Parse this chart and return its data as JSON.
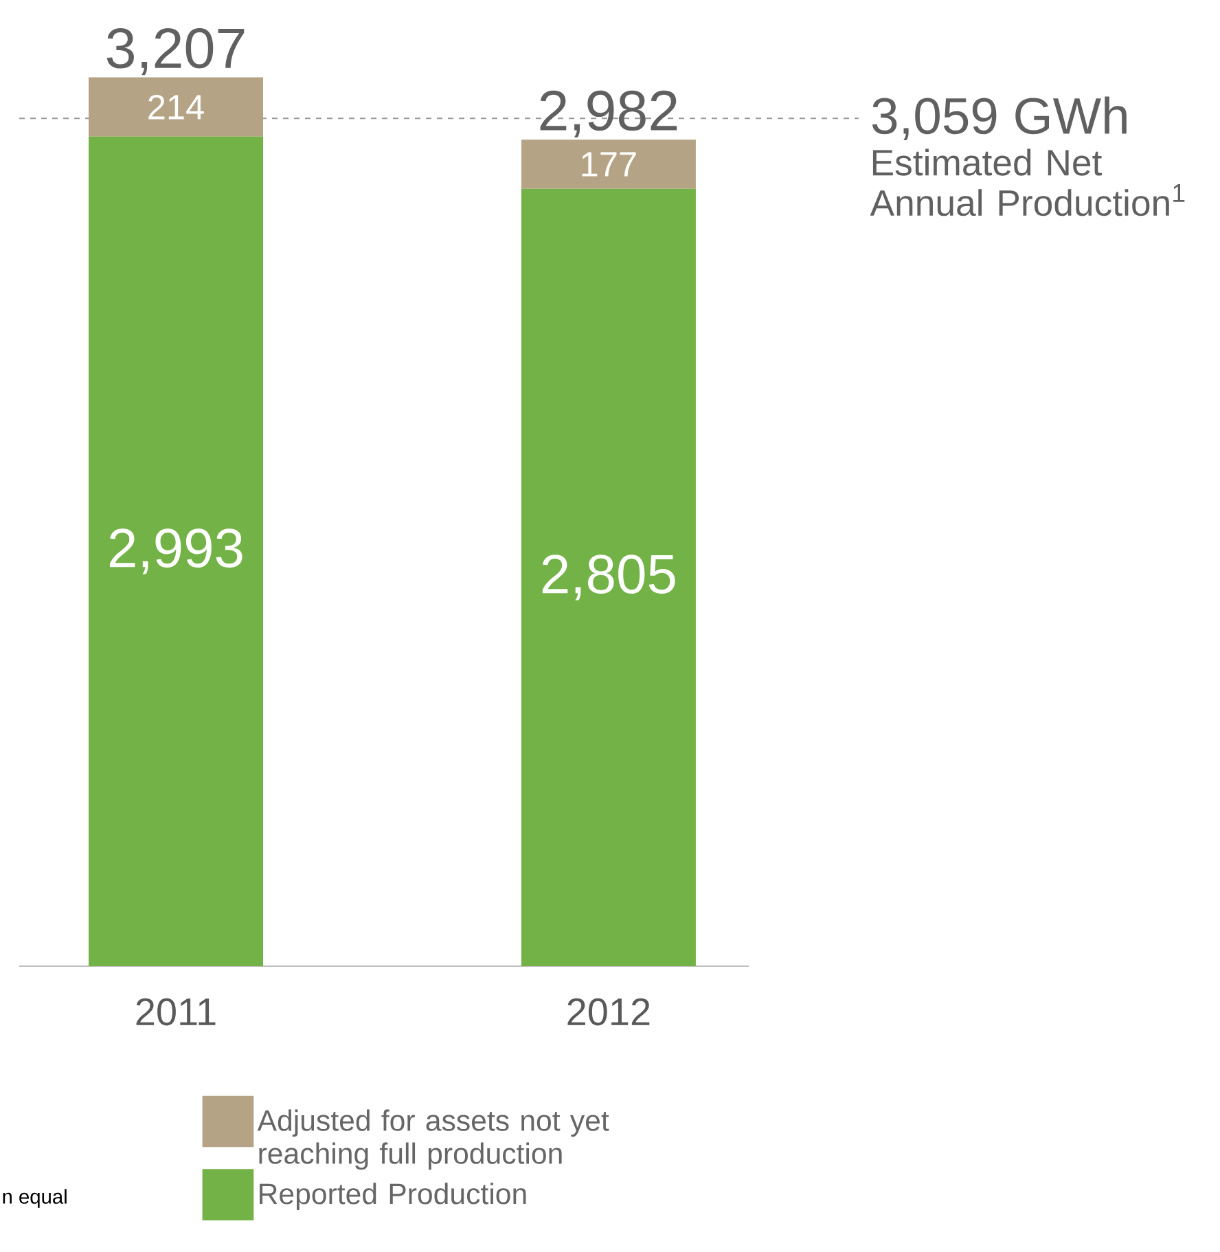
{
  "chart_data": {
    "type": "bar",
    "stacked": true,
    "categories": [
      "2011",
      "2012"
    ],
    "series": [
      {
        "name": "Reported Production",
        "color": "#72b246",
        "values": [
          2993,
          2805
        ],
        "value_labels": [
          "2,993",
          "2,805"
        ]
      },
      {
        "name": "Adjusted for assets not yet reaching full production",
        "color": "#b5a385",
        "values": [
          214,
          177
        ],
        "value_labels": [
          "214",
          "177"
        ]
      }
    ],
    "totals": [
      "3,207",
      "2,982"
    ],
    "ref_lines": [
      {
        "axis": "y",
        "value": 3059,
        "label": "3,059 GWh",
        "color": "#999999",
        "line_style": "dashed"
      }
    ],
    "annotations": [
      "Estimated Net Annual Production$^{1}$",
      "n equal"
    ],
    "legend": "bottom"
  }
}
